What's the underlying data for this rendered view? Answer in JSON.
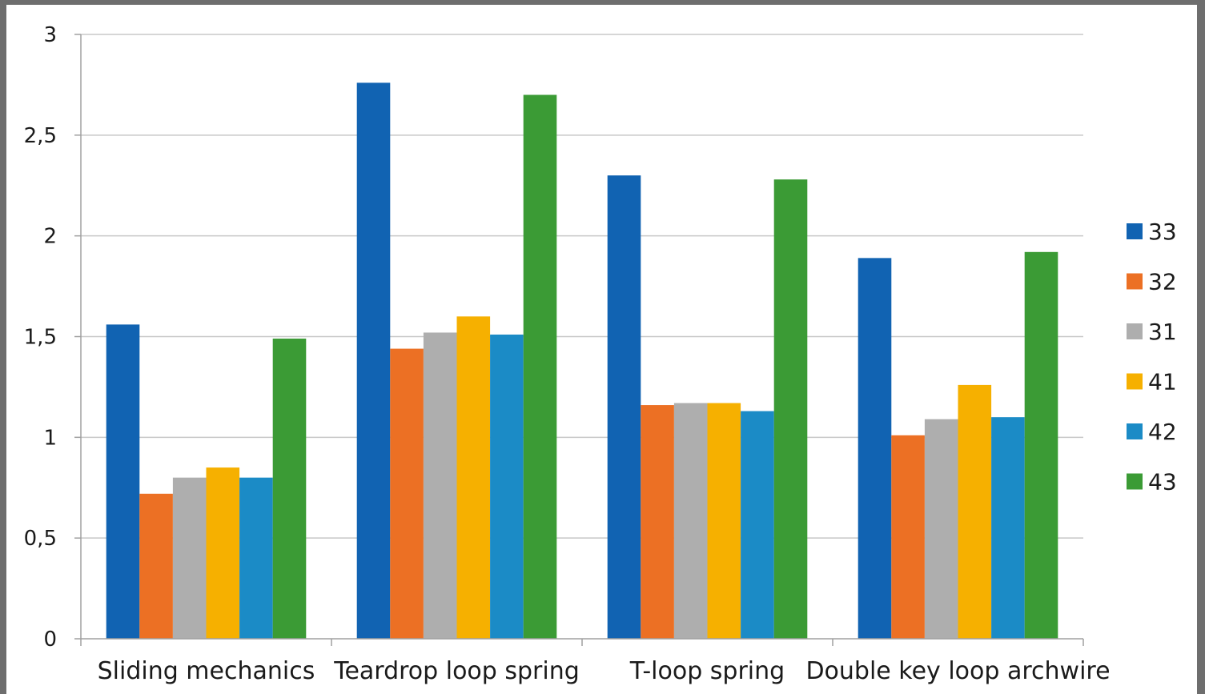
{
  "chart_data": {
    "type": "bar",
    "title": "",
    "xlabel": "",
    "ylabel": "",
    "categories": [
      "Sliding mechanics",
      "Teardrop loop spring",
      "T-loop spring",
      "Double key loop archwire"
    ],
    "series": [
      {
        "name": "33",
        "color": "#1163b2",
        "values": [
          1.56,
          2.76,
          2.3,
          1.89
        ]
      },
      {
        "name": "32",
        "color": "#ec7024",
        "values": [
          0.72,
          1.44,
          1.16,
          1.01
        ]
      },
      {
        "name": "31",
        "color": "#aeaeae",
        "values": [
          0.8,
          1.52,
          1.17,
          1.09
        ]
      },
      {
        "name": "41",
        "color": "#f6b000",
        "values": [
          0.85,
          1.6,
          1.17,
          1.26
        ]
      },
      {
        "name": "42",
        "color": "#1b8bc6",
        "values": [
          0.8,
          1.51,
          1.13,
          1.1
        ]
      },
      {
        "name": "43",
        "color": "#3b9b35",
        "values": [
          1.49,
          2.7,
          2.28,
          1.92
        ]
      }
    ],
    "ylim": [
      0,
      3
    ],
    "yticks": [
      0,
      0.5,
      1,
      1.5,
      2,
      2.5,
      3
    ],
    "ytick_labels": [
      "0",
      "0,5",
      "1",
      "1,5",
      "2",
      "2,5",
      "3"
    ],
    "grid": true,
    "legend_position": "right"
  }
}
